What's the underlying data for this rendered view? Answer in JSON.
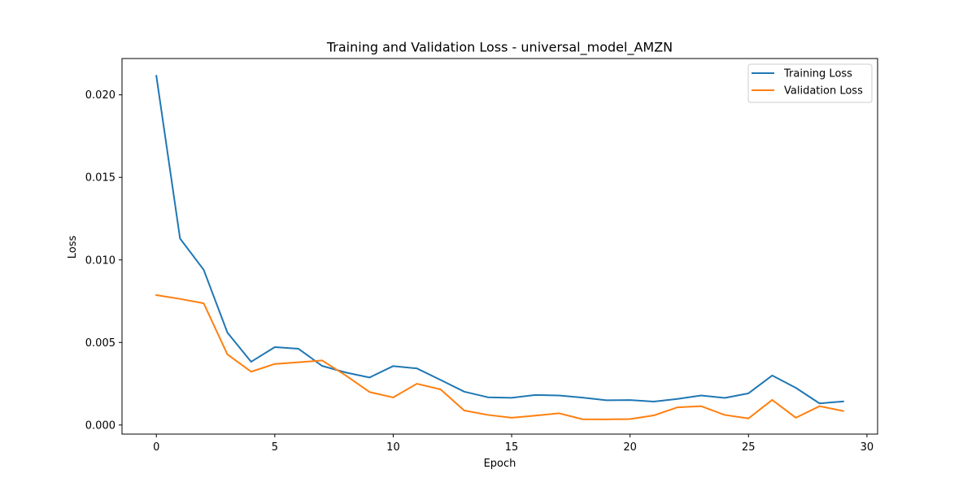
{
  "chart_data": {
    "type": "line",
    "title": "Training and Validation Loss - universal_model_AMZN",
    "xlabel": "Epoch",
    "ylabel": "Loss",
    "xlim": [
      -1.45,
      30.45
    ],
    "ylim": [
      -0.00055,
      0.0222
    ],
    "xticks": [
      0,
      5,
      10,
      15,
      20,
      25,
      30
    ],
    "xtick_labels": [
      "0",
      "5",
      "10",
      "15",
      "20",
      "25",
      "30"
    ],
    "yticks": [
      0.0,
      0.005,
      0.01,
      0.015,
      0.02
    ],
    "ytick_labels": [
      "0.000",
      "0.005",
      "0.010",
      "0.015",
      "0.020"
    ],
    "grid": false,
    "legend": {
      "position": "upper right"
    },
    "x": [
      0,
      1,
      2,
      3,
      4,
      5,
      6,
      7,
      8,
      9,
      10,
      11,
      12,
      13,
      14,
      15,
      16,
      17,
      18,
      19,
      20,
      21,
      22,
      23,
      24,
      25,
      26,
      27,
      28,
      29
    ],
    "series": [
      {
        "name": "Training Loss",
        "color": "#1f77b4",
        "values": [
          0.02115,
          0.0113,
          0.0094,
          0.0056,
          0.00383,
          0.00472,
          0.00462,
          0.00358,
          0.00318,
          0.00288,
          0.00357,
          0.00343,
          0.00273,
          0.00202,
          0.00168,
          0.00165,
          0.00182,
          0.00179,
          0.00166,
          0.0015,
          0.00151,
          0.00142,
          0.00158,
          0.00179,
          0.00164,
          0.00192,
          0.003,
          0.00225,
          0.00131,
          0.00143
        ]
      },
      {
        "name": "Validation Loss",
        "color": "#ff7f0e",
        "values": [
          0.00787,
          0.00764,
          0.00737,
          0.00428,
          0.00323,
          0.0037,
          0.0038,
          0.00391,
          0.003,
          0.002,
          0.00167,
          0.0025,
          0.00216,
          0.00088,
          0.00061,
          0.00044,
          0.00057,
          0.00071,
          0.00035,
          0.00034,
          0.00036,
          0.00058,
          0.00107,
          0.00114,
          0.00061,
          0.0004,
          0.00152,
          0.00044,
          0.00114,
          0.00085
        ]
      }
    ]
  }
}
